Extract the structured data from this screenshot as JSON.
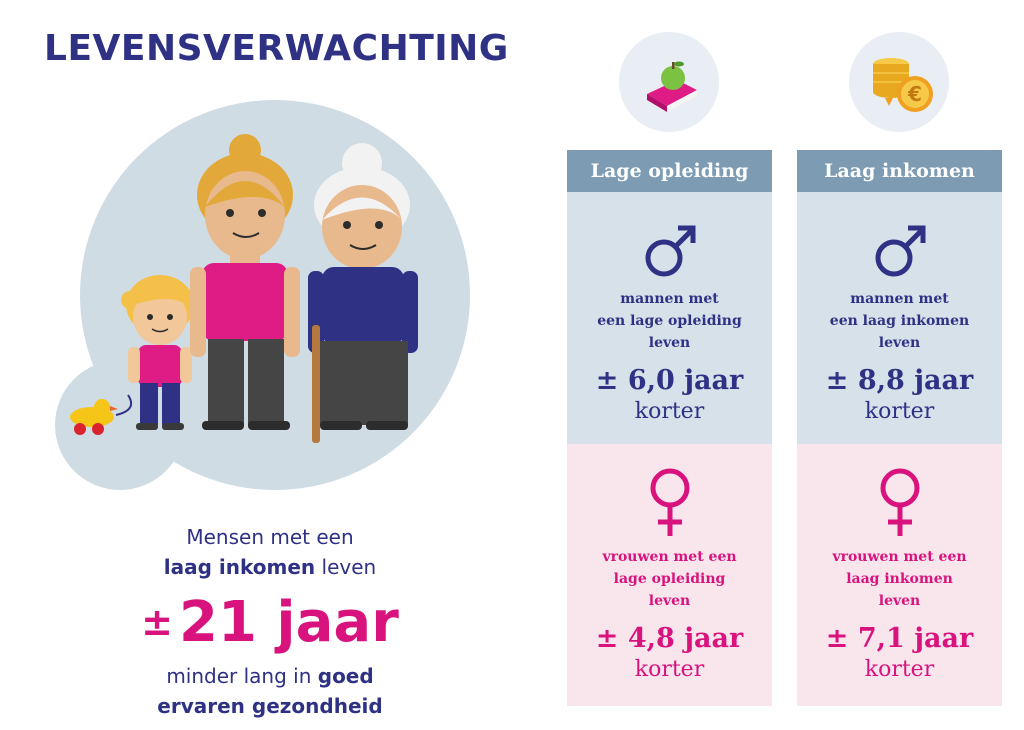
{
  "title": "LEVENSVERWACHTING",
  "colors": {
    "navy": "#2e3184",
    "magenta": "#d9137e",
    "header_blue": "#7d9cb3",
    "men_bg": "#d6e1e9",
    "women_bg": "#f8e6ec"
  },
  "stats": {
    "line1": "Mensen met een",
    "line2_bold": "laag inkomen",
    "line2_rest": " leven",
    "plusminus": "±",
    "value": "21 jaar",
    "line3_rest": "minder lang in ",
    "line3_bold": "goed",
    "line4": "ervaren gezondheid"
  },
  "columns": [
    {
      "icon": "book-apple-icon",
      "header": "Lage opleiding",
      "men": {
        "line1": "mannen met",
        "line2": "een lage opleiding",
        "line3": "leven",
        "value": "± 6,0 jaar",
        "suffix": "korter"
      },
      "women": {
        "line1": "vrouwen met een",
        "line2": "lage opleiding",
        "line3": "leven",
        "value": "± 4,8 jaar",
        "suffix": "korter"
      }
    },
    {
      "icon": "coins-euro-icon",
      "header": "Laag inkomen",
      "men": {
        "line1": "mannen met",
        "line2": "een laag inkomen",
        "line3": "leven",
        "value": "± 8,8 jaar",
        "suffix": "korter"
      },
      "women": {
        "line1": "vrouwen met een",
        "line2": "laag inkomen",
        "line3": "leven",
        "value": "± 7,1 jaar",
        "suffix": "korter"
      }
    }
  ]
}
